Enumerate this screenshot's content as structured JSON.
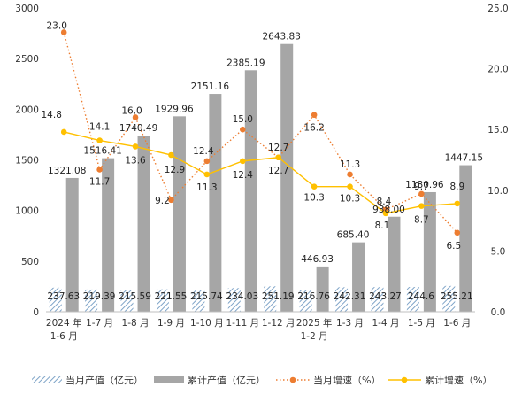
{
  "chart_data": {
    "type": "bar",
    "categories": [
      [
        "2024 年",
        "1-6 月"
      ],
      [
        "1-7 月"
      ],
      [
        "1-8 月"
      ],
      [
        "1-9 月"
      ],
      [
        "1-10 月"
      ],
      [
        "1-11 月"
      ],
      [
        "1-12 月"
      ],
      [
        "2025 年",
        "1-2 月"
      ],
      [
        "1-3 月"
      ],
      [
        "1-4 月"
      ],
      [
        "1-5 月"
      ],
      [
        "1-6 月"
      ]
    ],
    "series": [
      {
        "name": "当月产值（亿元）",
        "type": "bar",
        "axis": "left",
        "pattern": "diagonal-hatch",
        "color": "#7fa4c8",
        "values": [
          237.63,
          219.39,
          215.59,
          221.55,
          215.74,
          234.03,
          251.19,
          216.76,
          242.31,
          243.27,
          244.6,
          255.21
        ],
        "labels": [
          "237.63",
          "219.39",
          "215.59",
          "221.55",
          "215.74",
          "234.03",
          "251.19",
          "216.76",
          "242.31",
          "243.27",
          "244.6",
          "255.21"
        ]
      },
      {
        "name": "累计产值（亿元）",
        "type": "bar",
        "axis": "left",
        "color": "#a6a6a6",
        "values": [
          1321.08,
          1516.41,
          1740.49,
          1929.96,
          2151.16,
          2385.19,
          2643.83,
          446.93,
          685.4,
          938.0,
          1180.96,
          1447.15
        ],
        "labels": [
          "1321.08",
          "1516.41",
          "1740.49",
          "1929.96",
          "2151.16",
          "2385.19",
          "2643.83",
          "446.93",
          "685.40",
          "938.00",
          "1180.96",
          "1447.15"
        ]
      },
      {
        "name": "当月增速（%）",
        "type": "line",
        "axis": "right",
        "style": "dotted",
        "color": "#ed7d31",
        "values": [
          23.0,
          11.7,
          16.0,
          9.2,
          12.4,
          15.0,
          12.7,
          16.2,
          11.3,
          8.4,
          9.7,
          6.5
        ],
        "labels": [
          "23.0",
          "11.7",
          "16.0",
          "9.2",
          "12.4",
          "15.0",
          "12.7",
          "16.2",
          "11.3",
          "8.4",
          "9.7",
          "6.5"
        ]
      },
      {
        "name": "累计增速（%）",
        "type": "line",
        "axis": "right",
        "style": "solid",
        "color": "#ffc000",
        "values": [
          14.8,
          14.1,
          13.6,
          12.9,
          11.3,
          12.4,
          12.7,
          10.3,
          10.3,
          8.1,
          8.7,
          8.9
        ],
        "labels": [
          "14.8",
          "14.1",
          "13.6",
          "12.9",
          "11.3",
          "12.4",
          "12.7",
          "10.3",
          "10.3",
          "8.1",
          "8.7",
          "8.9"
        ]
      }
    ],
    "left_axis": {
      "ylim": [
        0,
        3000
      ],
      "ticks": [
        0,
        500,
        1000,
        1500,
        2000,
        2500,
        3000
      ],
      "tick_labels": [
        "0",
        "500",
        "1000",
        "1500",
        "2000",
        "2500",
        "3000"
      ]
    },
    "right_axis": {
      "ylim": [
        0,
        25
      ],
      "ticks": [
        0,
        5,
        10,
        15,
        20,
        25
      ],
      "tick_labels": [
        "0.0",
        "5.0",
        "10.0",
        "15.0",
        "20.0",
        "25.0"
      ]
    },
    "grid": false,
    "legend": {
      "position": "bottom"
    }
  }
}
